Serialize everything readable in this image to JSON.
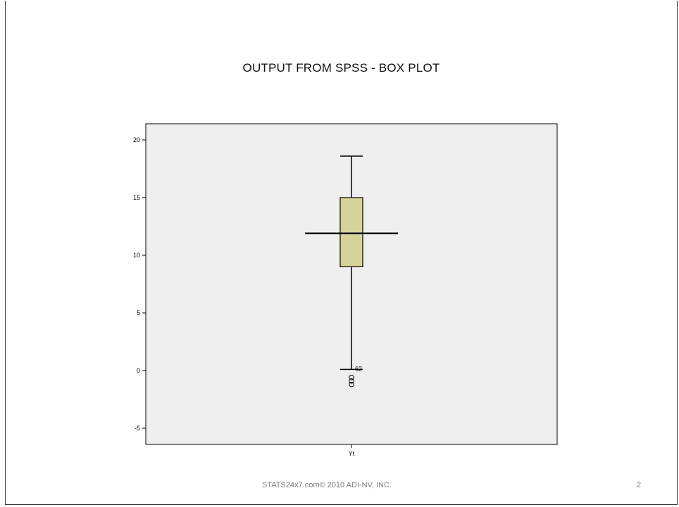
{
  "slide": {
    "title": "OUTPUT FROM SPSS  -  BOX PLOT",
    "footer": "STATS24x7.com© 2010 ADI-NV, INC.",
    "page_number": "2"
  },
  "chart_data": {
    "type": "box",
    "categories": [
      "Yt"
    ],
    "ylim": [
      -6.5,
      21
    ],
    "yticks": [
      -5,
      0,
      5,
      10,
      15,
      20
    ],
    "ytick_labels": [
      "-5",
      "0",
      "5",
      "10",
      "15",
      "20"
    ],
    "grid": false,
    "series": [
      {
        "category": "Yt",
        "whisker_low": 0.1,
        "q1": 9.0,
        "median": 11.9,
        "q3": 15.0,
        "whisker_high": 18.6,
        "outliers": [
          -0.6,
          -0.9,
          -1.2
        ],
        "outlier_label": "62"
      }
    ],
    "colors": {
      "plot_background": "#efefef",
      "box_fill": "#d6d298",
      "line": "#000000"
    }
  }
}
